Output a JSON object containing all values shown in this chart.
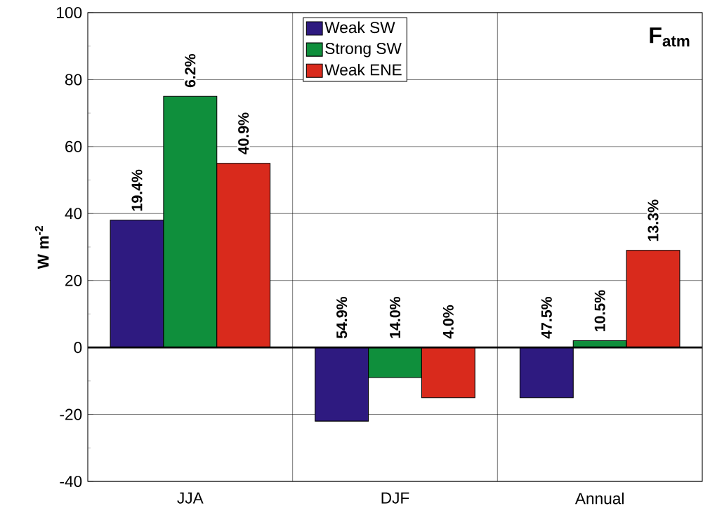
{
  "chart_data": {
    "type": "bar",
    "title": "F$_{atm}$",
    "ylabel": "W m$^{-2}$",
    "categories": [
      "JJA",
      "DJF",
      "Annual"
    ],
    "series": [
      {
        "name": "Weak SW",
        "color": "#2e1a80",
        "values": [
          38,
          -22,
          -15
        ]
      },
      {
        "name": "Strong SW",
        "color": "#0f8f3c",
        "values": [
          75,
          -9,
          2
        ]
      },
      {
        "name": "Weak ENE",
        "color": "#d92a1c",
        "values": [
          55,
          -15,
          29
        ]
      }
    ],
    "annotations": [
      "19.4%",
      "6.2%",
      "40.9%",
      "54.9%",
      "14.0%",
      "4.0%",
      "47.5%",
      "10.5%",
      "13.3%"
    ],
    "ylim": [
      -40,
      100
    ],
    "yticks": [
      -40,
      -20,
      0,
      20,
      40,
      60,
      80,
      100
    ],
    "grid": true,
    "legend": "top",
    "ref_lines": [
      {
        "axis": "y",
        "value": 0
      }
    ]
  }
}
